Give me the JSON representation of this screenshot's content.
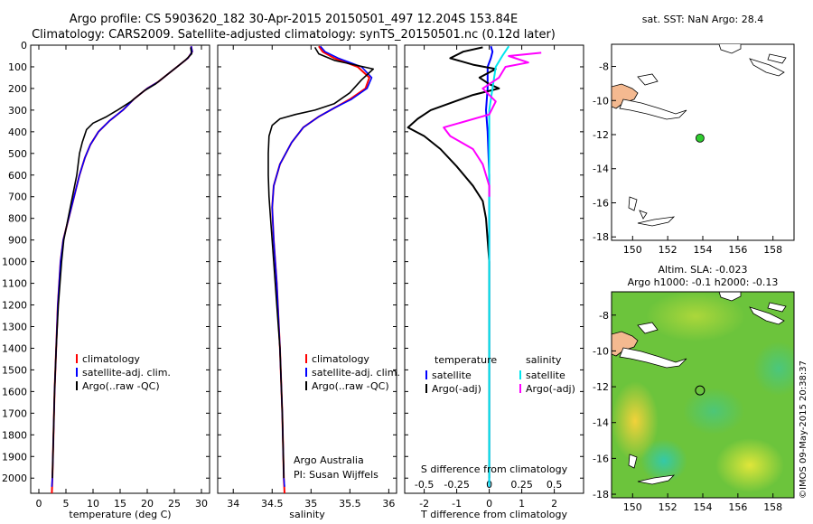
{
  "header": {
    "line1": "Argo profile: CS 5903620_182 30-Apr-2015 20150501_497 12.204S 153.84E",
    "line2": "Climatology: CARS2009. Satellite-adjusted climatology: synTS_20150501.nc (0.12d later)"
  },
  "colors": {
    "climatology": "#ff0000",
    "satellite": "#0000ff",
    "argo": "#000000",
    "salinity_sat": "#00e5ee",
    "salinity_argo": "#ff00ff",
    "land": "#f4b990",
    "float_marker": "#2fcc2f"
  },
  "chart_data": [
    {
      "type": "line",
      "id": "temperature",
      "xlabel": "temperature (deg C)",
      "x_ticks": [
        0,
        5,
        10,
        15,
        20,
        25,
        30
      ],
      "xlim": [
        -1.5,
        31.5
      ],
      "ylim": [
        2070,
        0
      ],
      "y_ticks": [
        0,
        100,
        200,
        300,
        400,
        500,
        600,
        700,
        800,
        900,
        1000,
        1100,
        1200,
        1300,
        1400,
        1500,
        1600,
        1700,
        1800,
        1900,
        2000
      ],
      "legend": [
        "climatology",
        "satellite-adj. clim.",
        "Argo(..raw -QC)"
      ],
      "series": [
        {
          "name": "climatology",
          "points": [
            [
              28.1,
              5
            ],
            [
              28.3,
              30
            ],
            [
              27.5,
              60
            ],
            [
              25.5,
              100
            ],
            [
              24,
              130
            ],
            [
              22,
              170
            ],
            [
              20,
              200
            ],
            [
              17.5,
              250
            ],
            [
              15.5,
              300
            ],
            [
              13,
              350
            ],
            [
              11,
              400
            ],
            [
              9.5,
              460
            ],
            [
              8.5,
              520
            ],
            [
              7.5,
              600
            ],
            [
              6.5,
              700
            ],
            [
              5.5,
              800
            ],
            [
              4.5,
              900
            ],
            [
              4,
              1000
            ],
            [
              3.5,
              1200
            ],
            [
              3.2,
              1400
            ],
            [
              2.9,
              1600
            ],
            [
              2.7,
              1800
            ],
            [
              2.5,
              2000
            ],
            [
              2.4,
              2070
            ]
          ]
        },
        {
          "name": "satellite-adj. clim.",
          "points": [
            [
              28.1,
              5
            ],
            [
              28.3,
              30
            ],
            [
              27.5,
              60
            ],
            [
              25.5,
              100
            ],
            [
              24,
              130
            ],
            [
              22,
              170
            ],
            [
              20,
              200
            ],
            [
              17.5,
              250
            ],
            [
              15.5,
              300
            ],
            [
              13,
              350
            ],
            [
              11,
              400
            ],
            [
              9.5,
              460
            ],
            [
              8.5,
              520
            ],
            [
              7.5,
              600
            ],
            [
              6.5,
              700
            ],
            [
              5.5,
              800
            ],
            [
              4.5,
              900
            ],
            [
              4,
              1000
            ],
            [
              3.5,
              1200
            ],
            [
              3.2,
              1400
            ],
            [
              2.9,
              1600
            ],
            [
              2.7,
              1800
            ],
            [
              2.5,
              2000
            ],
            [
              2.4,
              2040
            ]
          ]
        },
        {
          "name": "Argo(..raw -QC)",
          "points": [
            [
              28,
              10
            ],
            [
              28.2,
              40
            ],
            [
              27,
              70
            ],
            [
              25.5,
              100
            ],
            [
              23.5,
              140
            ],
            [
              21.5,
              180
            ],
            [
              19.5,
              210
            ],
            [
              17,
              260
            ],
            [
              14.5,
              300
            ],
            [
              12.5,
              330
            ],
            [
              10,
              360
            ],
            [
              8.8,
              390
            ],
            [
              8,
              450
            ],
            [
              7.5,
              500
            ],
            [
              7,
              600
            ],
            [
              6.2,
              700
            ],
            [
              5.4,
              800
            ],
            [
              4.6,
              900
            ],
            [
              4.2,
              1000
            ],
            [
              3.6,
              1200
            ],
            [
              3.2,
              1400
            ],
            [
              2.9,
              1600
            ],
            [
              2.7,
              1800
            ],
            [
              2.5,
              2000
            ]
          ]
        }
      ]
    },
    {
      "type": "line",
      "id": "salinity",
      "xlabel": "salinity",
      "x_ticks": [
        34,
        34.5,
        35,
        35.5,
        36
      ],
      "xlim": [
        33.8,
        36.1
      ],
      "ylim": [
        2070,
        0
      ],
      "legend": [
        "climatology",
        "satellite-adj. clim.",
        "Argo(..raw -QC)"
      ],
      "annotation": [
        "Argo Australia",
        "PI: Susan Wijffels"
      ],
      "series": [
        {
          "name": "climatology",
          "points": [
            [
              35.1,
              5
            ],
            [
              35.15,
              30
            ],
            [
              35.3,
              60
            ],
            [
              35.6,
              100
            ],
            [
              35.75,
              150
            ],
            [
              35.7,
              200
            ],
            [
              35.5,
              250
            ],
            [
              35.3,
              290
            ],
            [
              35.1,
              330
            ],
            [
              34.9,
              380
            ],
            [
              34.75,
              450
            ],
            [
              34.6,
              550
            ],
            [
              34.52,
              650
            ],
            [
              34.5,
              750
            ],
            [
              34.52,
              900
            ],
            [
              34.56,
              1100
            ],
            [
              34.6,
              1400
            ],
            [
              34.63,
              1700
            ],
            [
              34.65,
              2000
            ],
            [
              34.66,
              2070
            ]
          ]
        },
        {
          "name": "satellite-adj. clim.",
          "points": [
            [
              35.12,
              5
            ],
            [
              35.18,
              30
            ],
            [
              35.35,
              60
            ],
            [
              35.65,
              100
            ],
            [
              35.78,
              150
            ],
            [
              35.72,
              200
            ],
            [
              35.52,
              250
            ],
            [
              35.3,
              290
            ],
            [
              35.1,
              330
            ],
            [
              34.9,
              380
            ],
            [
              34.75,
              450
            ],
            [
              34.6,
              550
            ],
            [
              34.52,
              650
            ],
            [
              34.5,
              750
            ],
            [
              34.52,
              900
            ],
            [
              34.56,
              1100
            ],
            [
              34.6,
              1400
            ],
            [
              34.63,
              1700
            ],
            [
              34.65,
              2000
            ],
            [
              34.66,
              2040
            ]
          ]
        },
        {
          "name": "Argo(..raw -QC)",
          "points": [
            [
              35.05,
              10
            ],
            [
              35.1,
              40
            ],
            [
              35.3,
              70
            ],
            [
              35.8,
              110
            ],
            [
              35.65,
              160
            ],
            [
              35.5,
              220
            ],
            [
              35.3,
              270
            ],
            [
              35.05,
              300
            ],
            [
              34.8,
              320
            ],
            [
              34.6,
              340
            ],
            [
              34.5,
              370
            ],
            [
              34.46,
              420
            ],
            [
              34.45,
              500
            ],
            [
              34.45,
              600
            ],
            [
              34.46,
              700
            ],
            [
              34.48,
              800
            ],
            [
              34.52,
              1000
            ],
            [
              34.56,
              1200
            ],
            [
              34.6,
              1400
            ],
            [
              34.63,
              1700
            ],
            [
              34.65,
              2000
            ]
          ]
        }
      ]
    },
    {
      "type": "line",
      "id": "difference",
      "xlabel": "T difference from climatology",
      "x_ticks": [
        -2,
        -1,
        0,
        1,
        2
      ],
      "xlabel_top": "S difference from climatology",
      "x_ticks_top": [
        "-0.5",
        "-0.25",
        "0",
        "0.25",
        "0.5"
      ],
      "xlim": [
        -2.6,
        2.9
      ],
      "ylim": [
        2070,
        0
      ],
      "legend_left_title": "temperature",
      "legend_left": [
        "satellite",
        "Argo(-adj)"
      ],
      "legend_right_title": "salinity",
      "legend_right": [
        "satellite",
        "Argo(-adj)"
      ],
      "series": [
        {
          "name": "temperature satellite",
          "points": [
            [
              0.05,
              5
            ],
            [
              0.1,
              30
            ],
            [
              0.05,
              60
            ],
            [
              -0.05,
              100
            ],
            [
              -0.05,
              200
            ],
            [
              -0.1,
              300
            ],
            [
              -0.05,
              400
            ],
            [
              0,
              600
            ],
            [
              0,
              2040
            ]
          ]
        },
        {
          "name": "temperature Argo(-adj)",
          "points": [
            [
              -0.2,
              10
            ],
            [
              -0.8,
              30
            ],
            [
              -1.2,
              60
            ],
            [
              -0.5,
              90
            ],
            [
              0.2,
              110
            ],
            [
              -0.3,
              150
            ],
            [
              0,
              180
            ],
            [
              0.3,
              200
            ],
            [
              -0.5,
              230
            ],
            [
              -1.8,
              300
            ],
            [
              -2.2,
              340
            ],
            [
              -2.5,
              380
            ],
            [
              -2.0,
              420
            ],
            [
              -1.5,
              480
            ],
            [
              -1.0,
              560
            ],
            [
              -0.5,
              650
            ],
            [
              -0.2,
              720
            ],
            [
              -0.1,
              800
            ],
            [
              -0.05,
              900
            ],
            [
              0,
              1000
            ],
            [
              0,
              2000
            ]
          ]
        },
        {
          "name": "salinity satellite",
          "points": [
            [
              0.6,
              5
            ],
            [
              0.4,
              50
            ],
            [
              0.2,
              100
            ],
            [
              0.1,
              200
            ],
            [
              0,
              300
            ],
            [
              0,
              600
            ],
            [
              0,
              2040
            ]
          ]
        },
        {
          "name": "salinity Argo(-adj)",
          "points": [
            [
              1.6,
              35
            ],
            [
              0.6,
              50
            ],
            [
              1.2,
              80
            ],
            [
              0.5,
              100
            ],
            [
              0.3,
              150
            ],
            [
              -0.2,
              200
            ],
            [
              0.2,
              260
            ],
            [
              0,
              320
            ],
            [
              -1.4,
              380
            ],
            [
              -1.2,
              420
            ],
            [
              -0.5,
              480
            ],
            [
              -0.2,
              550
            ],
            [
              0,
              650
            ],
            [
              0,
              700
            ]
          ]
        }
      ]
    }
  ],
  "maps": {
    "top": {
      "title": "sat. SST: NaN Argo: 28.4",
      "x_ticks": [
        "150",
        "152",
        "154",
        "156",
        "158"
      ],
      "y_ticks": [
        "-8",
        "-10",
        "-12",
        "-14",
        "-16",
        "-18"
      ],
      "float": {
        "lon": 153.84,
        "lat": -12.204
      }
    },
    "bottom": {
      "title1": "Altim. SLA: -0.023",
      "title2": "Argo h1000: -0.1 h2000: -0.13",
      "x_ticks": [
        "150",
        "152",
        "154",
        "156",
        "158"
      ],
      "y_ticks": [
        "-8",
        "-10",
        "-12",
        "-14",
        "-16",
        "-18"
      ],
      "float": {
        "lon": 153.84,
        "lat": -12.204
      }
    },
    "lon_range": [
      148.8,
      159.2
    ],
    "lat_range": [
      -18.2,
      -6.7
    ]
  },
  "footer": "©IMOS 09-May-2015 20:38:37"
}
